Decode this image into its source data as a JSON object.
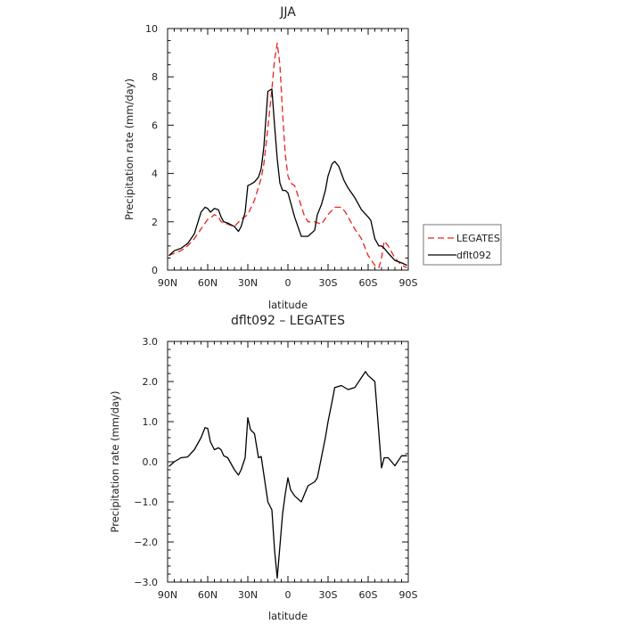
{
  "chart_data": [
    {
      "type": "line",
      "title": "JJA",
      "xlabel": "latitude",
      "ylabel": "Precipitation rate (mm/day)",
      "xlim": [
        -90,
        90
      ],
      "ylim": [
        0,
        10
      ],
      "x_axis_reversed_north_to_south": true,
      "x_ticks": [
        -90,
        -60,
        -30,
        0,
        30,
        60,
        90
      ],
      "x_tick_labels": [
        "90N",
        "60N",
        "30N",
        "0",
        "30S",
        "60S",
        "90S"
      ],
      "y_ticks": [
        0,
        2,
        4,
        6,
        8,
        10
      ],
      "y_tick_labels": [
        "0",
        "2",
        "4",
        "6",
        "8",
        "10"
      ],
      "legend_position": "right",
      "series": [
        {
          "name": "LEGATES",
          "color": "#e8231f",
          "dash": "dashed",
          "x": [
            -89,
            -85,
            -80,
            -75,
            -70,
            -65,
            -60,
            -57,
            -55,
            -52,
            -50,
            -45,
            -40,
            -35,
            -30,
            -25,
            -20,
            -18,
            -15,
            -12,
            -10,
            -8,
            -6,
            -4,
            -2,
            0,
            2,
            5,
            8,
            12,
            15,
            20,
            25,
            30,
            35,
            38,
            40,
            43,
            45,
            50,
            55,
            60,
            65,
            68,
            70,
            72,
            75,
            80,
            85,
            89
          ],
          "y": [
            0.6,
            0.7,
            0.8,
            1.0,
            1.3,
            1.7,
            2.1,
            2.2,
            2.3,
            2.2,
            2.0,
            1.9,
            1.8,
            2.1,
            2.3,
            2.9,
            3.8,
            4.4,
            5.9,
            7.5,
            8.7,
            9.4,
            8.5,
            6.5,
            4.8,
            3.9,
            3.6,
            3.5,
            3.0,
            2.3,
            2.0,
            2.0,
            1.9,
            2.3,
            2.6,
            2.6,
            2.6,
            2.4,
            2.2,
            1.7,
            1.3,
            0.6,
            0.2,
            0.1,
            0.5,
            1.2,
            1.0,
            0.5,
            0.2,
            0.1
          ]
        },
        {
          "name": "dflt092",
          "color": "#000000",
          "dash": "solid",
          "x": [
            -89,
            -85,
            -80,
            -75,
            -70,
            -65,
            -62,
            -60,
            -58,
            -55,
            -52,
            -50,
            -48,
            -45,
            -40,
            -37,
            -35,
            -32,
            -30,
            -28,
            -25,
            -22,
            -20,
            -18,
            -15,
            -12,
            -10,
            -8,
            -6,
            -4,
            -2,
            0,
            2,
            5,
            10,
            15,
            20,
            22,
            25,
            28,
            30,
            33,
            35,
            38,
            40,
            42,
            45,
            50,
            55,
            60,
            62,
            65,
            68,
            70,
            72,
            75,
            80,
            85,
            89
          ],
          "y": [
            0.6,
            0.8,
            0.9,
            1.1,
            1.5,
            2.4,
            2.6,
            2.55,
            2.4,
            2.55,
            2.5,
            2.2,
            2.0,
            1.95,
            1.8,
            1.6,
            1.8,
            2.4,
            3.5,
            3.55,
            3.65,
            3.85,
            4.2,
            5.1,
            7.4,
            7.5,
            6.0,
            4.6,
            3.6,
            3.3,
            3.3,
            3.2,
            2.8,
            2.2,
            1.4,
            1.4,
            1.65,
            2.3,
            2.7,
            3.3,
            3.9,
            4.4,
            4.5,
            4.3,
            4.0,
            3.7,
            3.4,
            3.0,
            2.5,
            2.2,
            2.05,
            1.3,
            1.0,
            1.0,
            0.9,
            0.7,
            0.4,
            0.3,
            0.2
          ]
        }
      ]
    },
    {
      "type": "line",
      "title": "dflt092 – LEGATES",
      "xlabel": "latitude",
      "ylabel": "Precipitation rate (mm/day)",
      "xlim": [
        -90,
        90
      ],
      "ylim": [
        -3,
        3
      ],
      "x_axis_reversed_north_to_south": true,
      "x_ticks": [
        -90,
        -60,
        -30,
        0,
        30,
        60,
        90
      ],
      "x_tick_labels": [
        "90N",
        "60N",
        "30N",
        "0",
        "30S",
        "60S",
        "90S"
      ],
      "y_ticks": [
        -3,
        -2,
        -1,
        0,
        1,
        2,
        3
      ],
      "y_tick_labels": [
        "−3.0",
        "−2.0",
        "−1.0",
        "0.0",
        "1.0",
        "2.0",
        "3.0"
      ],
      "series": [
        {
          "color": "#000000",
          "dash": "solid",
          "x": [
            -89,
            -85,
            -80,
            -75,
            -70,
            -65,
            -62,
            -60,
            -58,
            -55,
            -52,
            -50,
            -48,
            -45,
            -40,
            -37,
            -35,
            -32,
            -30,
            -28,
            -25,
            -22,
            -20,
            -15,
            -12,
            -10,
            -8,
            -6,
            -4,
            -2,
            0,
            2,
            5,
            10,
            15,
            20,
            22,
            25,
            28,
            30,
            33,
            35,
            40,
            45,
            50,
            55,
            58,
            60,
            65,
            70,
            72,
            75,
            80,
            85,
            89
          ],
          "y": [
            -0.12,
            0.0,
            0.1,
            0.12,
            0.3,
            0.6,
            0.85,
            0.83,
            0.5,
            0.3,
            0.35,
            0.3,
            0.15,
            0.1,
            -0.2,
            -0.33,
            -0.2,
            0.1,
            1.1,
            0.8,
            0.7,
            0.1,
            0.13,
            -1.0,
            -1.2,
            -2.2,
            -2.9,
            -2.1,
            -1.3,
            -0.8,
            -0.4,
            -0.7,
            -0.85,
            -1.0,
            -0.6,
            -0.5,
            -0.4,
            0.1,
            0.6,
            1.0,
            1.5,
            1.85,
            1.9,
            1.8,
            1.85,
            2.1,
            2.25,
            2.15,
            2.0,
            -0.15,
            0.1,
            0.1,
            -0.1,
            0.15,
            0.15
          ]
        }
      ]
    }
  ]
}
